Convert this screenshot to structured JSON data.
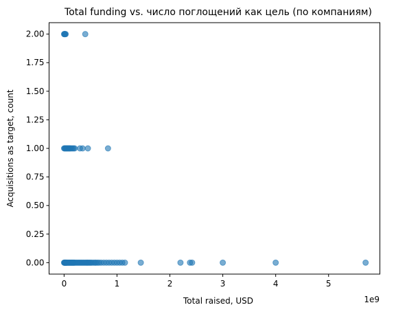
{
  "chart_data": {
    "type": "scatter",
    "title": "Total funding vs. число поглощений как цель (по компаниям)",
    "xlabel": "Total raised, USD",
    "ylabel": "Acquisitions as target, count",
    "x_offset_label": "1e9",
    "x_scale": 1000000000,
    "xlim": [
      -0.284,
      5.97
    ],
    "ylim": [
      -0.1,
      2.1
    ],
    "x_ticks": [
      0,
      1,
      2,
      3,
      4,
      5
    ],
    "x_tick_labels": [
      "0",
      "1",
      "2",
      "3",
      "4",
      "5"
    ],
    "y_ticks": [
      0.0,
      0.25,
      0.5,
      0.75,
      1.0,
      1.25,
      1.5,
      1.75,
      2.0
    ],
    "y_tick_labels": [
      "0.00",
      "0.25",
      "0.50",
      "0.75",
      "1.00",
      "1.25",
      "1.50",
      "1.75",
      "2.00"
    ],
    "marker_color": "#1f77b4",
    "marker_alpha": 0.6,
    "grid": false,
    "legend": "none",
    "points_x": [
      0.0,
      0.005,
      0.01,
      0.015,
      0.02,
      0.025,
      0.03,
      0.035,
      0.04,
      0.045,
      0.05,
      0.06,
      0.07,
      0.08,
      0.09,
      0.1,
      0.11,
      0.12,
      0.13,
      0.14,
      0.15,
      0.16,
      0.17,
      0.18,
      0.19,
      0.2,
      0.22,
      0.24,
      0.26,
      0.28,
      0.3,
      0.32,
      0.34,
      0.36,
      0.38,
      0.4,
      0.42,
      0.44,
      0.46,
      0.48,
      0.5,
      0.52,
      0.55,
      0.58,
      0.6,
      0.63,
      0.66,
      0.7,
      0.75,
      0.8,
      0.85,
      0.9,
      0.95,
      1.0,
      1.05,
      1.1,
      1.15,
      1.45,
      2.2,
      2.38,
      2.42,
      3.0,
      4.0,
      5.7,
      0.0,
      0.01,
      0.02,
      0.03,
      0.04,
      0.05,
      0.06,
      0.07,
      0.08,
      0.09,
      0.1,
      0.11,
      0.12,
      0.14,
      0.16,
      0.18,
      0.2,
      0.3,
      0.35,
      0.45,
      0.83,
      0.0,
      0.005,
      0.01,
      0.015,
      0.02,
      0.03,
      0.4
    ],
    "points_y": [
      0,
      0,
      0,
      0,
      0,
      0,
      0,
      0,
      0,
      0,
      0,
      0,
      0,
      0,
      0,
      0,
      0,
      0,
      0,
      0,
      0,
      0,
      0,
      0,
      0,
      0,
      0,
      0,
      0,
      0,
      0,
      0,
      0,
      0,
      0,
      0,
      0,
      0,
      0,
      0,
      0,
      0,
      0,
      0,
      0,
      0,
      0,
      0,
      0,
      0,
      0,
      0,
      0,
      0,
      0,
      0,
      0,
      0,
      0,
      0,
      0,
      0,
      0,
      0,
      1,
      1,
      1,
      1,
      1,
      1,
      1,
      1,
      1,
      1,
      1,
      1,
      1,
      1,
      1,
      1,
      1,
      1,
      1,
      1,
      1,
      2,
      2,
      2,
      2,
      2,
      2,
      2
    ]
  }
}
